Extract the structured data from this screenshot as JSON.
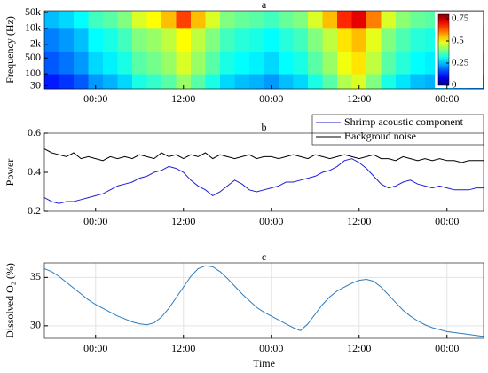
{
  "chart_data": [
    {
      "type": "heatmap",
      "title": "a",
      "ylabel": "Frequency (Hz)",
      "log_y": true,
      "x_bins": [
        0,
        2,
        4,
        6,
        8,
        10,
        12,
        14,
        16,
        18,
        20,
        22,
        24,
        26,
        28,
        30,
        32,
        34,
        36,
        38,
        40,
        42,
        44,
        46,
        48,
        50,
        52,
        54,
        56,
        58,
        60
      ],
      "y_bins": [
        22,
        100,
        1000,
        10000,
        60000
      ],
      "values": [
        [
          0.12,
          0.14,
          0.17,
          0.22,
          0.24,
          0.27,
          0.32,
          0.34,
          0.37,
          0.42,
          0.37,
          0.32,
          0.27,
          0.25,
          0.24,
          0.22,
          0.25,
          0.27,
          0.32,
          0.37,
          0.44,
          0.47,
          0.4,
          0.32,
          0.28,
          0.25,
          0.24,
          0.25,
          0.22,
          0.2
        ],
        [
          0.17,
          0.19,
          0.22,
          0.27,
          0.29,
          0.32,
          0.37,
          0.39,
          0.42,
          0.47,
          0.42,
          0.37,
          0.32,
          0.3,
          0.29,
          0.27,
          0.3,
          0.32,
          0.37,
          0.42,
          0.49,
          0.52,
          0.45,
          0.37,
          0.33,
          0.3,
          0.29,
          0.3,
          0.27,
          0.25
        ],
        [
          0.2,
          0.22,
          0.25,
          0.3,
          0.32,
          0.35,
          0.4,
          0.42,
          0.45,
          0.5,
          0.45,
          0.4,
          0.35,
          0.33,
          0.32,
          0.3,
          0.33,
          0.35,
          0.4,
          0.45,
          0.52,
          0.55,
          0.48,
          0.4,
          0.36,
          0.33,
          0.32,
          0.33,
          0.3,
          0.28
        ],
        [
          0.25,
          0.27,
          0.3,
          0.35,
          0.37,
          0.4,
          0.47,
          0.5,
          0.55,
          0.65,
          0.55,
          0.47,
          0.4,
          0.38,
          0.37,
          0.35,
          0.38,
          0.4,
          0.47,
          0.55,
          0.67,
          0.72,
          0.6,
          0.47,
          0.41,
          0.38,
          0.37,
          0.38,
          0.35,
          0.33
        ]
      ],
      "xlim": [
        0,
        60
      ],
      "xticks": [
        {
          "value": 7,
          "label": "00:00"
        },
        {
          "value": 19,
          "label": "12:00"
        },
        {
          "value": 31,
          "label": "00:00"
        },
        {
          "value": 43,
          "label": "12:00"
        },
        {
          "value": 55,
          "label": "00:00"
        }
      ],
      "ylim": [
        22,
        60000
      ],
      "yticks": [
        30,
        100,
        500,
        {
          "value": 2000,
          "label": "2k"
        },
        {
          "value": 10000,
          "label": "10k"
        },
        {
          "value": 50000,
          "label": "50k"
        }
      ],
      "clim": [
        0,
        0.8
      ],
      "cticks": [
        0,
        0.25,
        0.5,
        0.75
      ]
    },
    {
      "type": "line",
      "title": "b",
      "ylabel": "Power",
      "legend": "top-right",
      "x": [
        0,
        1,
        2,
        3,
        4,
        5,
        6,
        7,
        8,
        9,
        10,
        11,
        12,
        13,
        14,
        15,
        16,
        17,
        18,
        19,
        20,
        21,
        22,
        23,
        24,
        25,
        26,
        27,
        28,
        29,
        30,
        31,
        32,
        33,
        34,
        35,
        36,
        37,
        38,
        39,
        40,
        41,
        42,
        43,
        44,
        45,
        46,
        47,
        48,
        49,
        50,
        51,
        52,
        53,
        54,
        55,
        56,
        57,
        58,
        59,
        60
      ],
      "series": [
        {
          "name": "Shrimp acoustic component",
          "color": "#1f1fd6",
          "values": [
            0.27,
            0.25,
            0.24,
            0.25,
            0.25,
            0.26,
            0.27,
            0.28,
            0.29,
            0.31,
            0.33,
            0.34,
            0.35,
            0.37,
            0.38,
            0.4,
            0.41,
            0.43,
            0.42,
            0.4,
            0.36,
            0.33,
            0.31,
            0.28,
            0.3,
            0.33,
            0.36,
            0.34,
            0.31,
            0.3,
            0.31,
            0.32,
            0.33,
            0.35,
            0.35,
            0.36,
            0.37,
            0.38,
            0.4,
            0.41,
            0.43,
            0.46,
            0.47,
            0.45,
            0.42,
            0.38,
            0.34,
            0.32,
            0.33,
            0.35,
            0.36,
            0.34,
            0.33,
            0.32,
            0.33,
            0.32,
            0.31,
            0.31,
            0.31,
            0.32,
            0.32
          ]
        },
        {
          "name": "Backgroud noise",
          "color": "#000000",
          "values": [
            0.52,
            0.5,
            0.49,
            0.48,
            0.5,
            0.47,
            0.48,
            0.47,
            0.46,
            0.48,
            0.47,
            0.48,
            0.47,
            0.49,
            0.48,
            0.47,
            0.5,
            0.48,
            0.49,
            0.47,
            0.49,
            0.48,
            0.5,
            0.47,
            0.49,
            0.48,
            0.47,
            0.48,
            0.49,
            0.47,
            0.48,
            0.48,
            0.47,
            0.48,
            0.49,
            0.48,
            0.47,
            0.49,
            0.48,
            0.47,
            0.48,
            0.49,
            0.48,
            0.47,
            0.48,
            0.49,
            0.47,
            0.47,
            0.46,
            0.48,
            0.47,
            0.46,
            0.47,
            0.46,
            0.47,
            0.46,
            0.46,
            0.45,
            0.46,
            0.46,
            0.46
          ]
        }
      ],
      "xlim": [
        0,
        60
      ],
      "xticks": [
        {
          "value": 7,
          "label": "00:00"
        },
        {
          "value": 19,
          "label": "12:00"
        },
        {
          "value": 31,
          "label": "00:00"
        },
        {
          "value": 43,
          "label": "12:00"
        },
        {
          "value": 55,
          "label": "00:00"
        }
      ],
      "ylim": [
        0.2,
        0.6
      ],
      "yticks": [
        0.2,
        0.4,
        0.6
      ]
    },
    {
      "type": "line",
      "title": "c",
      "ylabel": "Dissolved O₂ (%)",
      "xlabel": "Time",
      "grid": true,
      "x": [
        0,
        1,
        2,
        3,
        4,
        5,
        6,
        7,
        8,
        9,
        10,
        11,
        12,
        13,
        14,
        15,
        16,
        17,
        18,
        19,
        20,
        21,
        22,
        23,
        24,
        25,
        26,
        27,
        28,
        29,
        30,
        31,
        32,
        33,
        34,
        35,
        36,
        37,
        38,
        39,
        40,
        41,
        42,
        43,
        44,
        45,
        46,
        47,
        48,
        49,
        50,
        51,
        52,
        53,
        54,
        55,
        56,
        57,
        58,
        59,
        60
      ],
      "series": [
        {
          "color": "#2b7bbf",
          "values": [
            35.9,
            35.6,
            35.1,
            34.5,
            33.9,
            33.3,
            32.7,
            32.2,
            31.8,
            31.4,
            31.0,
            30.7,
            30.4,
            30.2,
            30.1,
            30.3,
            30.9,
            31.8,
            32.9,
            34.0,
            35.1,
            35.9,
            36.2,
            36.1,
            35.6,
            34.9,
            34.1,
            33.3,
            32.6,
            31.9,
            31.4,
            31.0,
            30.6,
            30.2,
            29.8,
            29.5,
            30.2,
            31.2,
            32.2,
            33.0,
            33.6,
            34.0,
            34.4,
            34.7,
            34.8,
            34.6,
            34.0,
            33.2,
            32.4,
            31.6,
            31.0,
            30.5,
            30.1,
            29.8,
            29.6,
            29.4,
            29.3,
            29.2,
            29.1,
            29.0,
            28.9
          ]
        }
      ],
      "xlim": [
        0,
        60
      ],
      "xticks": [
        {
          "value": 7,
          "label": "00:00"
        },
        {
          "value": 19,
          "label": "12:00"
        },
        {
          "value": 31,
          "label": "00:00"
        },
        {
          "value": 43,
          "label": "12:00"
        },
        {
          "value": 55,
          "label": "00:00"
        }
      ],
      "ylim": [
        28.7,
        36.5
      ],
      "yticks": [
        30,
        35
      ]
    }
  ]
}
